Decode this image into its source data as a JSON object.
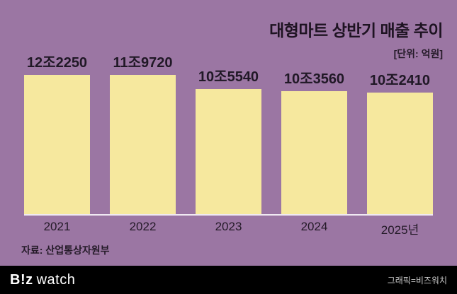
{
  "chart_data": {
    "type": "bar",
    "title": "대형마트 상반기 매출 추이",
    "unit_note": "[단위: 억원]",
    "categories": [
      "2021",
      "2022",
      "2023",
      "2024",
      "2025년"
    ],
    "values": [
      122250,
      119720,
      105540,
      103560,
      102410
    ],
    "value_labels": [
      "12조2250",
      "11조9720",
      "10조5540",
      "10조3560",
      "10조2410"
    ],
    "source": "자료: 산업통상자원부",
    "ylim": [
      0,
      122250
    ],
    "grid": false,
    "legend": false,
    "colors": {
      "background": "#9b76a3",
      "bar": "#f6e89e",
      "text": "#241a28",
      "baseline": "#f0e9f2",
      "footer_background": "#000000"
    }
  },
  "footer": {
    "logo_b": "B!z",
    "logo_watch": "watch",
    "credit": "그래픽=비즈워치"
  }
}
